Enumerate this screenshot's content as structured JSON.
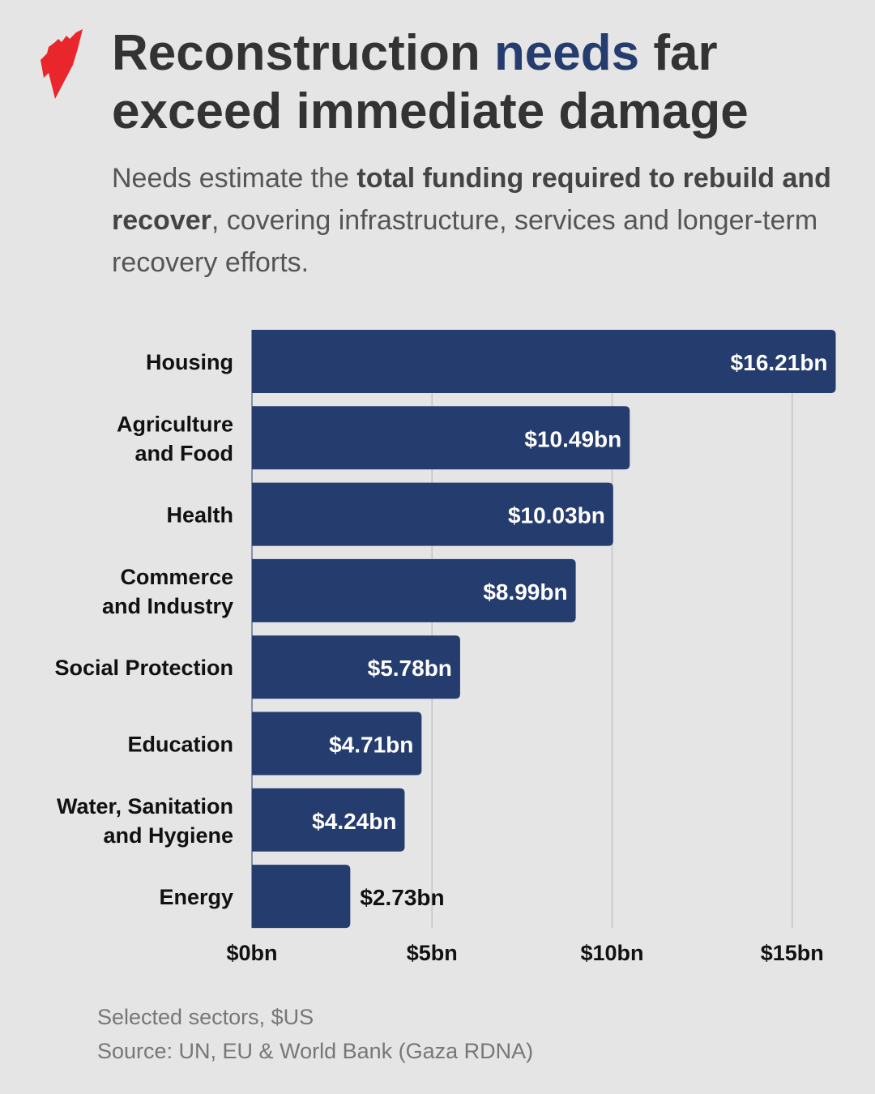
{
  "header": {
    "title_part1": "Reconstruction ",
    "title_highlight": "needs",
    "title_part2": " far exceed immediate damage",
    "subtitle_part1": "Needs estimate the ",
    "subtitle_bold": "total funding required to rebuild and recover",
    "subtitle_part2": ", covering infrastructure, services and longer-term recovery efforts."
  },
  "colors": {
    "bar": "#253c6e",
    "highlight": "#253c6e",
    "logo": "#e8262b",
    "background": "#e5e5e5"
  },
  "chart_data": {
    "type": "bar",
    "orientation": "horizontal",
    "categories": [
      [
        "Housing"
      ],
      [
        "Agriculture",
        "and Food"
      ],
      [
        "Health"
      ],
      [
        "Commerce",
        "and Industry"
      ],
      [
        "Social Protection"
      ],
      [
        "Education"
      ],
      [
        "Water, Sanitation",
        "and Hygiene"
      ],
      [
        "Energy"
      ]
    ],
    "values": [
      16.21,
      10.49,
      10.03,
      8.99,
      5.78,
      4.71,
      4.24,
      2.73
    ],
    "data_labels": [
      "$16.21bn",
      "$10.49bn",
      "$10.03bn",
      "$8.99bn",
      "$5.78bn",
      "$4.71bn",
      "$4.24bn",
      "$2.73bn"
    ],
    "xlim": [
      0,
      16.21
    ],
    "xticks": [
      0,
      5,
      10,
      15
    ],
    "xtick_labels": [
      "$0bn",
      "$5bn",
      "$10bn",
      "$15bn"
    ],
    "grid": true,
    "xlabel": "",
    "ylabel": ""
  },
  "footer": {
    "note": "Selected sectors, $US",
    "source": "Source: UN, EU & World Bank (Gaza RDNA)"
  }
}
